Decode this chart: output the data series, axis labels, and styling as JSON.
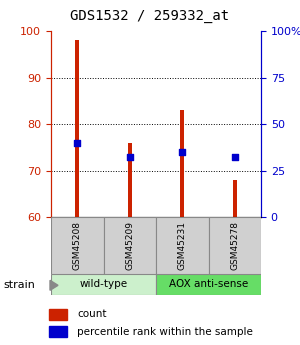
{
  "title": "GDS1532 / 259332_at",
  "samples": [
    "GSM45208",
    "GSM45209",
    "GSM45231",
    "GSM45278"
  ],
  "bar_bottom": 60,
  "bar_tops": [
    98,
    76,
    83,
    68
  ],
  "blue_values": [
    76,
    73,
    74,
    73
  ],
  "ylim_left": [
    60,
    100
  ],
  "ylim_right": [
    0,
    100
  ],
  "yticks_left": [
    60,
    70,
    80,
    90,
    100
  ],
  "yticks_right": [
    0,
    25,
    50,
    75,
    100
  ],
  "ytick_right_labels": [
    "0",
    "25",
    "50",
    "75",
    "100%"
  ],
  "left_axis_color": "#cc2200",
  "right_axis_color": "#0000cc",
  "bar_color": "#cc2200",
  "blue_marker_color": "#0000cc",
  "wt_color": "#ccf0cc",
  "aox_color": "#66dd66",
  "box_color": "#d0d0d0",
  "legend_count": "count",
  "legend_percentile": "percentile rank within the sample",
  "bar_width": 0.08
}
